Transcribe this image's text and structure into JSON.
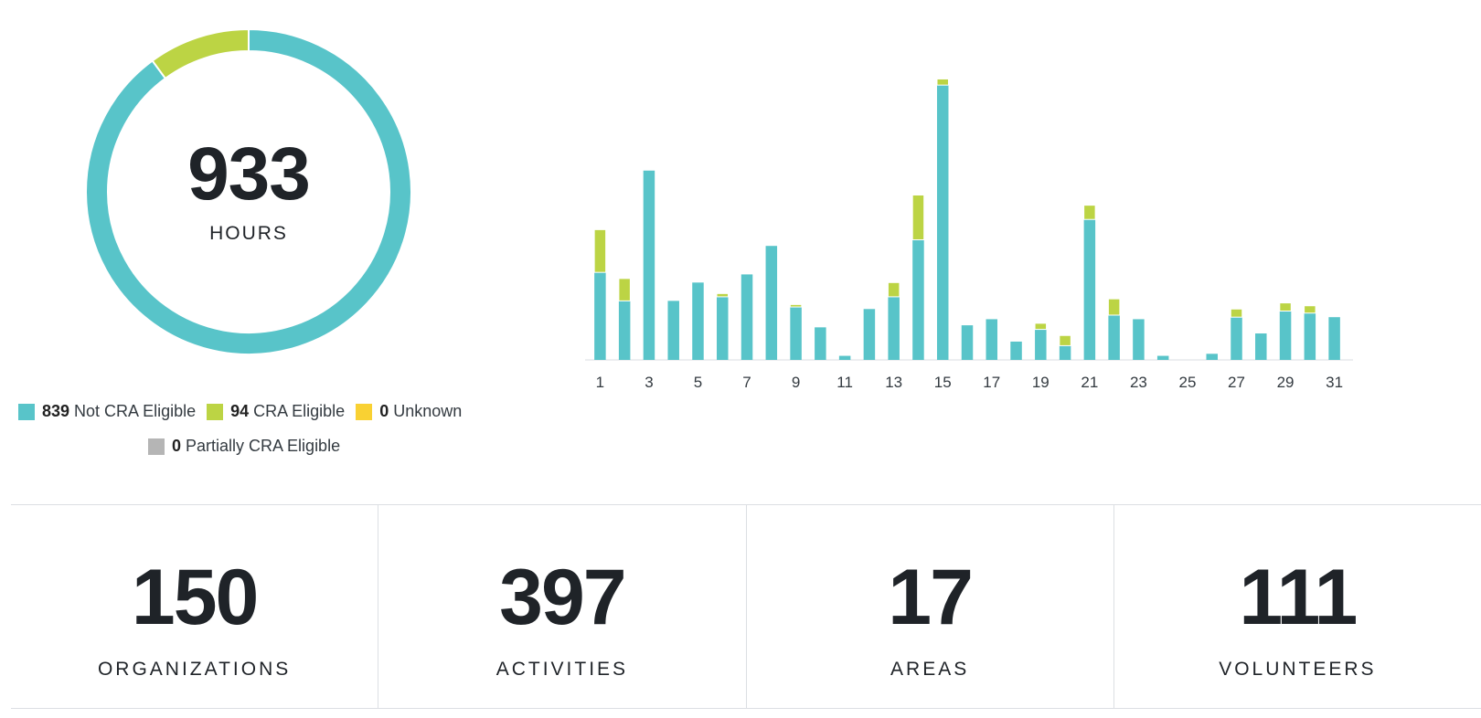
{
  "colors": {
    "not_cra": "#58c4c9",
    "cra": "#bcd444",
    "unknown": "#f9d133",
    "partial": "#b5b5b5",
    "text": "#1f2328"
  },
  "summary": {
    "value": "933",
    "label": "HOURS"
  },
  "legend": [
    {
      "value": "839",
      "label": "Not CRA Eligible",
      "color": "#58c4c9"
    },
    {
      "value": "94",
      "label": "CRA Eligible",
      "color": "#bcd444"
    },
    {
      "value": "0",
      "label": "Unknown",
      "color": "#f9d133"
    },
    {
      "value": "0",
      "label": "Partially CRA Eligible",
      "color": "#b5b5b5"
    }
  ],
  "stats": [
    {
      "value": "150",
      "label": "ORGANIZATIONS"
    },
    {
      "value": "397",
      "label": "ACTIVITIES"
    },
    {
      "value": "17",
      "label": "AREAS"
    },
    {
      "value": "111",
      "label": "VOLUNTEERS"
    }
  ],
  "chart_data": [
    {
      "type": "pie",
      "variant": "donut",
      "center_text": "933",
      "center_label": "HOURS",
      "slices": [
        {
          "name": "Not CRA Eligible",
          "value": 839,
          "color": "#58c4c9"
        },
        {
          "name": "CRA Eligible",
          "value": 94,
          "color": "#bcd444"
        },
        {
          "name": "Unknown",
          "value": 0,
          "color": "#f9d133"
        },
        {
          "name": "Partially CRA Eligible",
          "value": 0,
          "color": "#b5b5b5"
        }
      ]
    },
    {
      "type": "bar",
      "stacked": true,
      "categories": [
        "1",
        "2",
        "3",
        "4",
        "5",
        "6",
        "7",
        "8",
        "9",
        "10",
        "11",
        "12",
        "13",
        "14",
        "15",
        "16",
        "17",
        "18",
        "19",
        "20",
        "21",
        "22",
        "23",
        "24",
        "25",
        "26",
        "27",
        "28",
        "29",
        "30",
        "31"
      ],
      "tick_labels": [
        "1",
        "3",
        "5",
        "7",
        "9",
        "11",
        "13",
        "15",
        "17",
        "19",
        "21",
        "23",
        "25",
        "27",
        "29",
        "31"
      ],
      "series": [
        {
          "name": "Not CRA Eligible",
          "color": "#58c4c9",
          "values": [
            21.5,
            14.5,
            46.5,
            14.5,
            19,
            15.5,
            21,
            28,
            13,
            8,
            1,
            12.5,
            15.5,
            29.5,
            67.5,
            8.5,
            10,
            4.5,
            7.5,
            3.5,
            34.5,
            11,
            10,
            1,
            0,
            1.5,
            10.5,
            6.5,
            12,
            11.5,
            10.5
          ]
        },
        {
          "name": "CRA Eligible",
          "color": "#bcd444",
          "values": [
            10.5,
            5.5,
            0,
            0,
            0,
            0.8,
            0,
            0,
            0.6,
            0,
            0,
            0,
            3.5,
            11,
            1.5,
            0,
            0,
            0,
            1.5,
            2.5,
            3.5,
            4,
            0,
            0,
            0,
            0,
            2,
            0,
            2,
            1.8,
            0
          ]
        }
      ],
      "grid": false,
      "legend": "none"
    }
  ]
}
